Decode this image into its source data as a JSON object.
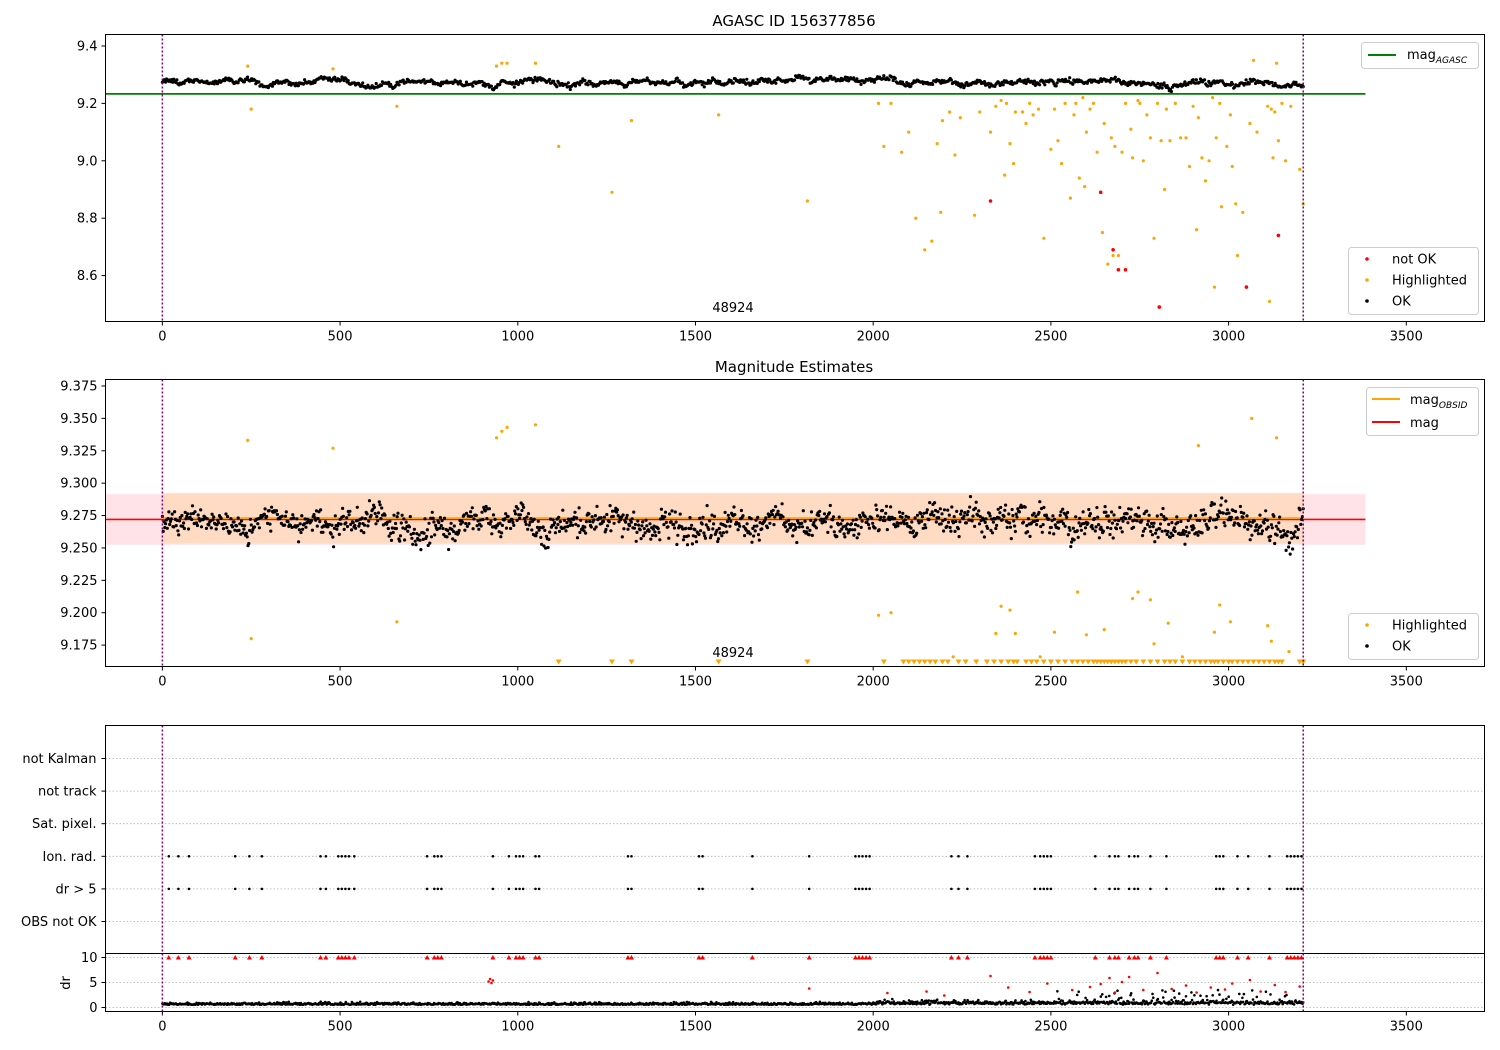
{
  "colors": {
    "ok": "#000000",
    "highlighted": "#ffa500",
    "not_ok": "#ff0000",
    "agasc_line": "#008000",
    "obsid_line": "#ffa500",
    "mag_line": "#ff0000",
    "mag_band": "#ffc0cb",
    "obsid_band": "#ffd8b8",
    "boundary": "#800080",
    "grid": "#b0b0b0"
  },
  "chart_data": [
    {
      "type": "scatter",
      "title": "AGASC ID 156377856",
      "xlim": [
        -160,
        3720
      ],
      "ylim": [
        8.44,
        9.44
      ],
      "xticks": [
        0,
        500,
        1000,
        1500,
        2000,
        2500,
        3000,
        3500
      ],
      "yticks": [
        8.6,
        8.8,
        9.0,
        9.2,
        9.4
      ],
      "ytick_labels": [
        "8.6",
        "8.8",
        "9.0",
        "9.2",
        "9.4"
      ],
      "reference_line": {
        "name": "mag",
        "subscript": "AGASC",
        "y": 9.233,
        "x_range": [
          -160,
          3385
        ]
      },
      "obs_boundaries": [
        0,
        3210
      ],
      "obsid_label": {
        "text": "48924",
        "x": 1605
      },
      "ok_band": {
        "center": 9.273,
        "spread": 0.02
      },
      "highlighted": [
        [
          240,
          9.33
        ],
        [
          250,
          9.18
        ],
        [
          480,
          9.32
        ],
        [
          660,
          9.19
        ],
        [
          940,
          9.33
        ],
        [
          955,
          9.34
        ],
        [
          970,
          9.34
        ],
        [
          1050,
          9.34
        ],
        [
          1115,
          9.05
        ],
        [
          1265,
          8.89
        ],
        [
          1320,
          9.14
        ],
        [
          1565,
          9.16
        ],
        [
          1815,
          8.86
        ],
        [
          2015,
          9.2
        ],
        [
          2030,
          9.05
        ],
        [
          2050,
          9.2
        ],
        [
          2080,
          9.03
        ],
        [
          2100,
          9.1
        ],
        [
          2120,
          8.8
        ],
        [
          2145,
          8.69
        ],
        [
          2165,
          8.72
        ],
        [
          2180,
          9.06
        ],
        [
          2190,
          8.82
        ],
        [
          2195,
          9.14
        ],
        [
          2215,
          9.17
        ],
        [
          2230,
          9.02
        ],
        [
          2245,
          9.15
        ],
        [
          2285,
          8.81
        ],
        [
          2300,
          9.17
        ],
        [
          2330,
          9.1
        ],
        [
          2345,
          9.19
        ],
        [
          2360,
          9.21
        ],
        [
          2370,
          8.95
        ],
        [
          2375,
          9.2
        ],
        [
          2385,
          9.06
        ],
        [
          2395,
          8.99
        ],
        [
          2400,
          9.17
        ],
        [
          2420,
          9.17
        ],
        [
          2430,
          9.13
        ],
        [
          2440,
          9.2
        ],
        [
          2450,
          9.16
        ],
        [
          2465,
          9.18
        ],
        [
          2480,
          8.73
        ],
        [
          2500,
          9.04
        ],
        [
          2510,
          9.18
        ],
        [
          2520,
          9.07
        ],
        [
          2530,
          8.99
        ],
        [
          2540,
          9.2
        ],
        [
          2555,
          8.87
        ],
        [
          2565,
          9.16
        ],
        [
          2570,
          9.2
        ],
        [
          2580,
          8.94
        ],
        [
          2590,
          9.22
        ],
        [
          2595,
          8.91
        ],
        [
          2600,
          9.1
        ],
        [
          2610,
          9.18
        ],
        [
          2620,
          9.2
        ],
        [
          2630,
          9.03
        ],
        [
          2645,
          8.75
        ],
        [
          2650,
          9.13
        ],
        [
          2660,
          8.64
        ],
        [
          2670,
          9.08
        ],
        [
          2675,
          8.67
        ],
        [
          2680,
          9.05
        ],
        [
          2690,
          8.67
        ],
        [
          2700,
          9.03
        ],
        [
          2710,
          9.2
        ],
        [
          2725,
          9.11
        ],
        [
          2730,
          9.01
        ],
        [
          2745,
          9.21
        ],
        [
          2750,
          9.2
        ],
        [
          2760,
          9.0
        ],
        [
          2770,
          9.16
        ],
        [
          2780,
          9.08
        ],
        [
          2790,
          8.73
        ],
        [
          2800,
          9.2
        ],
        [
          2810,
          9.07
        ],
        [
          2820,
          8.9
        ],
        [
          2825,
          9.18
        ],
        [
          2835,
          9.07
        ],
        [
          2850,
          9.2
        ],
        [
          2865,
          9.08
        ],
        [
          2880,
          9.08
        ],
        [
          2890,
          8.98
        ],
        [
          2900,
          9.19
        ],
        [
          2910,
          8.76
        ],
        [
          2915,
          9.15
        ],
        [
          2925,
          9.01
        ],
        [
          2935,
          8.93
        ],
        [
          2945,
          9.0
        ],
        [
          2955,
          9.22
        ],
        [
          2960,
          8.56
        ],
        [
          2965,
          9.08
        ],
        [
          2975,
          9.2
        ],
        [
          2980,
          8.84
        ],
        [
          2995,
          9.05
        ],
        [
          3005,
          9.16
        ],
        [
          3010,
          8.98
        ],
        [
          3020,
          8.85
        ],
        [
          3025,
          8.67
        ],
        [
          3040,
          8.82
        ],
        [
          3060,
          9.13
        ],
        [
          3070,
          9.35
        ],
        [
          3080,
          9.1
        ],
        [
          3110,
          9.19
        ],
        [
          3115,
          8.51
        ],
        [
          3120,
          9.18
        ],
        [
          3125,
          9.01
        ],
        [
          3130,
          9.17
        ],
        [
          3135,
          9.34
        ],
        [
          3140,
          9.07
        ],
        [
          3150,
          9.2
        ],
        [
          3160,
          9.0
        ],
        [
          3175,
          9.19
        ],
        [
          3200,
          8.97
        ],
        [
          3210,
          8.85
        ]
      ],
      "not_ok": [
        [
          2330,
          8.86
        ],
        [
          2640,
          8.89
        ],
        [
          2675,
          8.69
        ],
        [
          2690,
          8.62
        ],
        [
          2710,
          8.62
        ],
        [
          2805,
          8.49
        ],
        [
          3050,
          8.56
        ],
        [
          3140,
          8.74
        ]
      ],
      "legend": [
        {
          "label": "not OK",
          "color": "#ff0000"
        },
        {
          "label": "Highlighted",
          "color": "#ffa500"
        },
        {
          "label": "OK",
          "color": "#000000"
        }
      ]
    },
    {
      "type": "scatter",
      "title": "Magnitude Estimates",
      "xlim": [
        -160,
        3720
      ],
      "ylim": [
        9.1585,
        9.38
      ],
      "xticks": [
        0,
        500,
        1000,
        1500,
        2000,
        2500,
        3000,
        3500
      ],
      "yticks": [
        9.175,
        9.2,
        9.225,
        9.25,
        9.275,
        9.3,
        9.325,
        9.35,
        9.375
      ],
      "ytick_labels": [
        "9.175",
        "9.200",
        "9.225",
        "9.250",
        "9.275",
        "9.300",
        "9.325",
        "9.350",
        "9.375"
      ],
      "mag_line": {
        "name": "mag",
        "y": 9.272,
        "band": [
          9.2525,
          9.2915
        ],
        "x_range": [
          -160,
          3385
        ]
      },
      "obsid_line": {
        "name": "mag",
        "subscript": "OBSID",
        "y": 9.273,
        "band": [
          9.2535,
          9.2925
        ],
        "x_range": [
          0,
          3210
        ]
      },
      "obs_boundaries": [
        0,
        3210
      ],
      "obsid_label": {
        "text": "48924",
        "x": 1605
      },
      "ok_band": {
        "center": 9.27,
        "spread": 0.016
      },
      "highlighted": [
        [
          240,
          9.333
        ],
        [
          250,
          9.18
        ],
        [
          480,
          9.327
        ],
        [
          660,
          9.193
        ],
        [
          940,
          9.335
        ],
        [
          955,
          9.34
        ],
        [
          970,
          9.343
        ],
        [
          1050,
          9.345
        ],
        [
          2015,
          9.198
        ],
        [
          2050,
          9.2
        ],
        [
          2225,
          9.166
        ],
        [
          2345,
          9.184
        ],
        [
          2360,
          9.205
        ],
        [
          2385,
          9.202
        ],
        [
          2400,
          9.184
        ],
        [
          2470,
          9.166
        ],
        [
          2510,
          9.185
        ],
        [
          2575,
          9.216
        ],
        [
          2600,
          9.183
        ],
        [
          2650,
          9.187
        ],
        [
          2730,
          9.211
        ],
        [
          2745,
          9.216
        ],
        [
          2780,
          9.21
        ],
        [
          2790,
          9.176
        ],
        [
          2830,
          9.192
        ],
        [
          2870,
          9.166
        ],
        [
          2915,
          9.329
        ],
        [
          2960,
          9.185
        ],
        [
          2975,
          9.206
        ],
        [
          3005,
          9.193
        ],
        [
          3065,
          9.35
        ],
        [
          3110,
          9.19
        ],
        [
          3120,
          9.178
        ],
        [
          3135,
          9.335
        ],
        [
          3170,
          9.17
        ]
      ],
      "below_limit_markers": [
        1115,
        1265,
        1320,
        1565,
        1815,
        2030,
        2085,
        2100,
        2115,
        2130,
        2145,
        2160,
        2175,
        2195,
        2210,
        2240,
        2260,
        2290,
        2320,
        2340,
        2360,
        2380,
        2395,
        2405,
        2430,
        2445,
        2460,
        2480,
        2500,
        2520,
        2540,
        2560,
        2575,
        2590,
        2605,
        2620,
        2630,
        2640,
        2650,
        2660,
        2670,
        2680,
        2690,
        2700,
        2710,
        2725,
        2740,
        2760,
        2780,
        2800,
        2820,
        2835,
        2850,
        2870,
        2890,
        2905,
        2920,
        2935,
        2950,
        2960,
        2970,
        2985,
        3000,
        3010,
        3025,
        3040,
        3055,
        3070,
        3085,
        3100,
        3115,
        3130,
        3140,
        3150,
        3200,
        3210
      ],
      "legend_lines": [
        {
          "label": "mag",
          "subscript": "OBSID",
          "color": "#ffa500"
        },
        {
          "label": "mag",
          "subscript": "",
          "color": "#ff0000"
        }
      ],
      "legend": [
        {
          "label": "Highlighted",
          "color": "#ffa500"
        },
        {
          "label": "OK",
          "color": "#000000"
        }
      ]
    },
    {
      "type": "scatter",
      "title": "",
      "xlim": [
        -160,
        3720
      ],
      "categories": [
        "not Kalman",
        "not track",
        "Sat. pixel.",
        "Ion. rad.",
        "dr > 5",
        "OBS not OK"
      ],
      "flag_positions": {
        "Ion. rad.": [
          18,
          45,
          75,
          205,
          245,
          280,
          445,
          460,
          495,
          505,
          515,
          525,
          540,
          745,
          765,
          775,
          785,
          930,
          975,
          995,
          1005,
          1015,
          1050,
          1060,
          1310,
          1320,
          1510,
          1520,
          1660,
          1820,
          1950,
          1960,
          1970,
          1980,
          1990,
          2220,
          2240,
          2265,
          2455,
          2470,
          2480,
          2490,
          2500,
          2625,
          2665,
          2680,
          2690,
          2720,
          2735,
          2745,
          2780,
          2825,
          2965,
          2975,
          2985,
          3025,
          3055,
          3115,
          3165,
          3175,
          3185,
          3195,
          3205
        ],
        "dr > 5": [
          18,
          45,
          75,
          205,
          245,
          280,
          445,
          460,
          495,
          505,
          515,
          525,
          540,
          745,
          765,
          775,
          785,
          930,
          975,
          995,
          1005,
          1015,
          1050,
          1060,
          1310,
          1320,
          1510,
          1520,
          1660,
          1820,
          1950,
          1960,
          1970,
          1980,
          1990,
          2220,
          2240,
          2265,
          2455,
          2470,
          2480,
          2490,
          2500,
          2625,
          2665,
          2680,
          2690,
          2720,
          2735,
          2745,
          2780,
          2825,
          2965,
          2975,
          2985,
          3025,
          3055,
          3115,
          3165,
          3175,
          3185,
          3195,
          3205
        ]
      },
      "obs_boundaries": [
        0,
        3210
      ]
    },
    {
      "type": "scatter",
      "title": "",
      "xlim": [
        -160,
        3720
      ],
      "ylim": [
        -0.8,
        10.8
      ],
      "xticks": [
        0,
        500,
        1000,
        1500,
        2000,
        2500,
        3000,
        3500
      ],
      "yticks": [
        0,
        5,
        10
      ],
      "ytick_labels": [
        "0",
        "5",
        "10"
      ],
      "ylabel": "dr",
      "obs_boundaries": [
        0,
        3210
      ],
      "capped_at": 10,
      "capped_positions": [
        18,
        45,
        75,
        205,
        245,
        280,
        445,
        460,
        495,
        505,
        515,
        525,
        540,
        745,
        765,
        775,
        785,
        930,
        975,
        995,
        1005,
        1015,
        1050,
        1060,
        1310,
        1320,
        1510,
        1520,
        1660,
        1820,
        1950,
        1960,
        1970,
        1980,
        1990,
        2220,
        2240,
        2265,
        2455,
        2470,
        2480,
        2490,
        2500,
        2625,
        2665,
        2680,
        2690,
        2720,
        2735,
        2745,
        2780,
        2825,
        2965,
        2975,
        2985,
        3025,
        3055,
        3115,
        3165,
        3175,
        3185,
        3195,
        3205
      ],
      "high_points": [
        [
          918,
          5.2
        ],
        [
          922,
          5.7
        ],
        [
          926,
          4.9
        ],
        [
          930,
          5.4
        ],
        [
          1820,
          3.8
        ],
        [
          2040,
          2.9
        ],
        [
          2150,
          3.2
        ],
        [
          2200,
          2.4
        ],
        [
          2330,
          6.3
        ],
        [
          2380,
          4.0
        ],
        [
          2440,
          3.1
        ],
        [
          2490,
          4.8
        ],
        [
          2560,
          3.5
        ],
        [
          2610,
          4.1
        ],
        [
          2640,
          4.7
        ],
        [
          2665,
          5.9
        ],
        [
          2680,
          3.0
        ],
        [
          2700,
          5.1
        ],
        [
          2720,
          6.1
        ],
        [
          2760,
          3.5
        ],
        [
          2800,
          6.9
        ],
        [
          2840,
          3.7
        ],
        [
          2880,
          4.4
        ],
        [
          2910,
          3.0
        ],
        [
          2950,
          4.0
        ],
        [
          2990,
          3.6
        ],
        [
          3010,
          4.8
        ],
        [
          3060,
          5.5
        ],
        [
          3090,
          3.2
        ],
        [
          3130,
          4.5
        ],
        [
          3160,
          3.1
        ],
        [
          3200,
          4.2
        ]
      ]
    }
  ]
}
